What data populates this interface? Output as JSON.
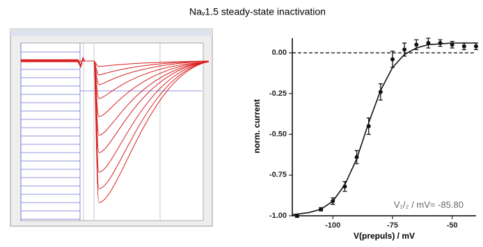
{
  "title": "Naᵥ1.5 steady-state inactivation",
  "chart_data": {
    "type": "scatter",
    "x_label": "V(prepuls) / mV",
    "y_label": "norm. current",
    "xlim": [
      -117,
      -40
    ],
    "ylim": [
      -1.0,
      0.09
    ],
    "xticks": [
      -100,
      -75,
      -50
    ],
    "yticks": [
      {
        "value": 0,
        "label": "0.00"
      },
      {
        "value": -0.25,
        "label": "-0.25"
      },
      {
        "value": -0.5,
        "label": "-0.50"
      },
      {
        "value": -0.75,
        "label": "-0.75"
      },
      {
        "value": -1,
        "label": "-1.00"
      }
    ],
    "reference_line": 0,
    "series": [
      {
        "color": "#111111",
        "x": [
          -115,
          -105,
          -100,
          -95,
          -90,
          -85,
          -80,
          -75,
          -70,
          -65,
          -60,
          -55,
          -50,
          -45,
          -40
        ],
        "values": [
          -1.0,
          -0.96,
          -0.91,
          -0.82,
          -0.64,
          -0.45,
          -0.24,
          -0.04,
          0.02,
          0.05,
          0.06,
          0.06,
          0.05,
          0.04,
          0.04
        ],
        "errors": [
          0.01,
          0.01,
          0.02,
          0.03,
          0.04,
          0.05,
          0.05,
          0.05,
          0.04,
          0.03,
          0.03,
          0.02,
          0.02,
          0.02,
          0.02
        ]
      }
    ],
    "fit": {
      "color": "#111111",
      "x": [
        -117,
        -110,
        -105,
        -100,
        -95,
        -90,
        -85,
        -80,
        -75,
        -70,
        -65,
        -60,
        -55,
        -50,
        -40
      ],
      "values": [
        -0.994,
        -0.98,
        -0.96,
        -0.91,
        -0.81,
        -0.65,
        -0.43,
        -0.23,
        -0.09,
        -0.01,
        0.03,
        0.05,
        0.055,
        0.06,
        0.06
      ]
    },
    "annotation": "V₁/₂ / mV= -85.80"
  }
}
